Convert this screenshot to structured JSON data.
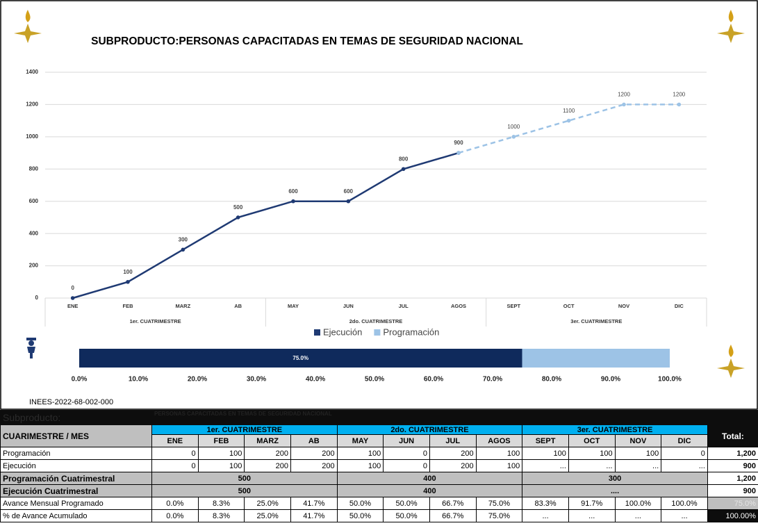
{
  "title": "SUBPRODUCTO:PERSONAS CAPACITADAS EN TEMAS DE SEGURIDAD NACIONAL",
  "code": "INEES-2022-68-002-000",
  "chart_data": [
    {
      "type": "line",
      "categories": [
        "ENE",
        "FEB",
        "MARZ",
        "AB",
        "MAY",
        "JUN",
        "JUL",
        "AGOS",
        "SEPT",
        "OCT",
        "NOV",
        "DIC"
      ],
      "category_groups": [
        "1er. CUATRIMESTRE",
        "2do. CUATRIMESTRE",
        "3er. CUATRIMESTRE"
      ],
      "series": [
        {
          "name": "Ejecución",
          "color": "#1f3a73",
          "dashed": false,
          "values": [
            0,
            100,
            300,
            500,
            600,
            600,
            800,
            900,
            null,
            null,
            null,
            null
          ]
        },
        {
          "name": "Programación",
          "color": "#9dc3e6",
          "dashed": true,
          "values": [
            null,
            null,
            null,
            null,
            null,
            null,
            null,
            900,
            1000,
            1100,
            1200,
            1200
          ]
        }
      ],
      "ylim": [
        0,
        1400
      ],
      "yticks": [
        0,
        200,
        400,
        600,
        800,
        1000,
        1200,
        1400
      ],
      "grid": true,
      "legend": "bottom"
    },
    {
      "type": "bar",
      "orientation": "horizontal",
      "series": [
        {
          "color": "#9dc3e6",
          "values": [
            100
          ]
        },
        {
          "color": "#0f2a5c",
          "values": [
            75
          ],
          "value_labels": [
            "75.0%"
          ]
        }
      ],
      "xlim": [
        0,
        100
      ],
      "xticks": [
        {
          "value": 0,
          "label": "0.0%"
        },
        {
          "value": 10,
          "label": "10.0%"
        },
        {
          "value": 20,
          "label": "20.0%"
        },
        {
          "value": 30,
          "label": "30.0%"
        },
        {
          "value": 40,
          "label": "40.0%"
        },
        {
          "value": 50,
          "label": "50.0%"
        },
        {
          "value": 60,
          "label": "60.0%"
        },
        {
          "value": 70,
          "label": "70.0%"
        },
        {
          "value": 80,
          "label": "80.0%"
        },
        {
          "value": 90,
          "label": "90.0%"
        },
        {
          "value": 100,
          "label": "100.0%"
        }
      ]
    }
  ],
  "table": {
    "subproducto": {
      "label": "Subproducto:",
      "value": "PERSONAS CAPACITADAS EN TEMAS DE SEGURIDAD NACIONAL"
    },
    "header": {
      "first": "CUARIMESTRE / MES",
      "groups": [
        "1er. CUATRIMESTRE",
        "2do. CUATRIMESTRE",
        "3er. CUATRIMESTRE"
      ],
      "months": [
        "ENE",
        "FEB",
        "MARZ",
        "AB",
        "MAY",
        "JUN",
        "JUL",
        "AGOS",
        "SEPT",
        "OCT",
        "NOV",
        "DIC"
      ],
      "total": "Total:"
    },
    "rows": [
      {
        "label": "Programación",
        "cells": [
          "0",
          "100",
          "200",
          "200",
          "100",
          "0",
          "200",
          "100",
          "100",
          "100",
          "100",
          "0"
        ],
        "total": "1,200"
      },
      {
        "label": "Ejecución",
        "cells": [
          "0",
          "100",
          "200",
          "200",
          "100",
          "0",
          "200",
          "100",
          "...",
          "...",
          "...",
          "..."
        ],
        "total": "900"
      },
      {
        "label": "Programación Cuatrimestral",
        "cells": [
          "500",
          "400",
          "300"
        ],
        "total": "1,200"
      },
      {
        "label": "Ejecución Cuatrimestral",
        "cells": [
          "500",
          "400",
          "...."
        ],
        "total": "900"
      },
      {
        "label": "Avance Mensual Programado",
        "cells": [
          "0.0%",
          "8.3%",
          "25.0%",
          "41.7%",
          "50.0%",
          "50.0%",
          "66.7%",
          "75.0%",
          "83.3%",
          "91.7%",
          "100.0%",
          "100.0%"
        ],
        "total": "75.0%"
      },
      {
        "label": "% de Avance Acumulado",
        "cells": [
          "0.0%",
          "8.3%",
          "25.0%",
          "41.7%",
          "50.0%",
          "50.0%",
          "66.7%",
          "75.0%",
          "...",
          "...",
          "...",
          "..."
        ],
        "total": "100.00%"
      }
    ]
  }
}
